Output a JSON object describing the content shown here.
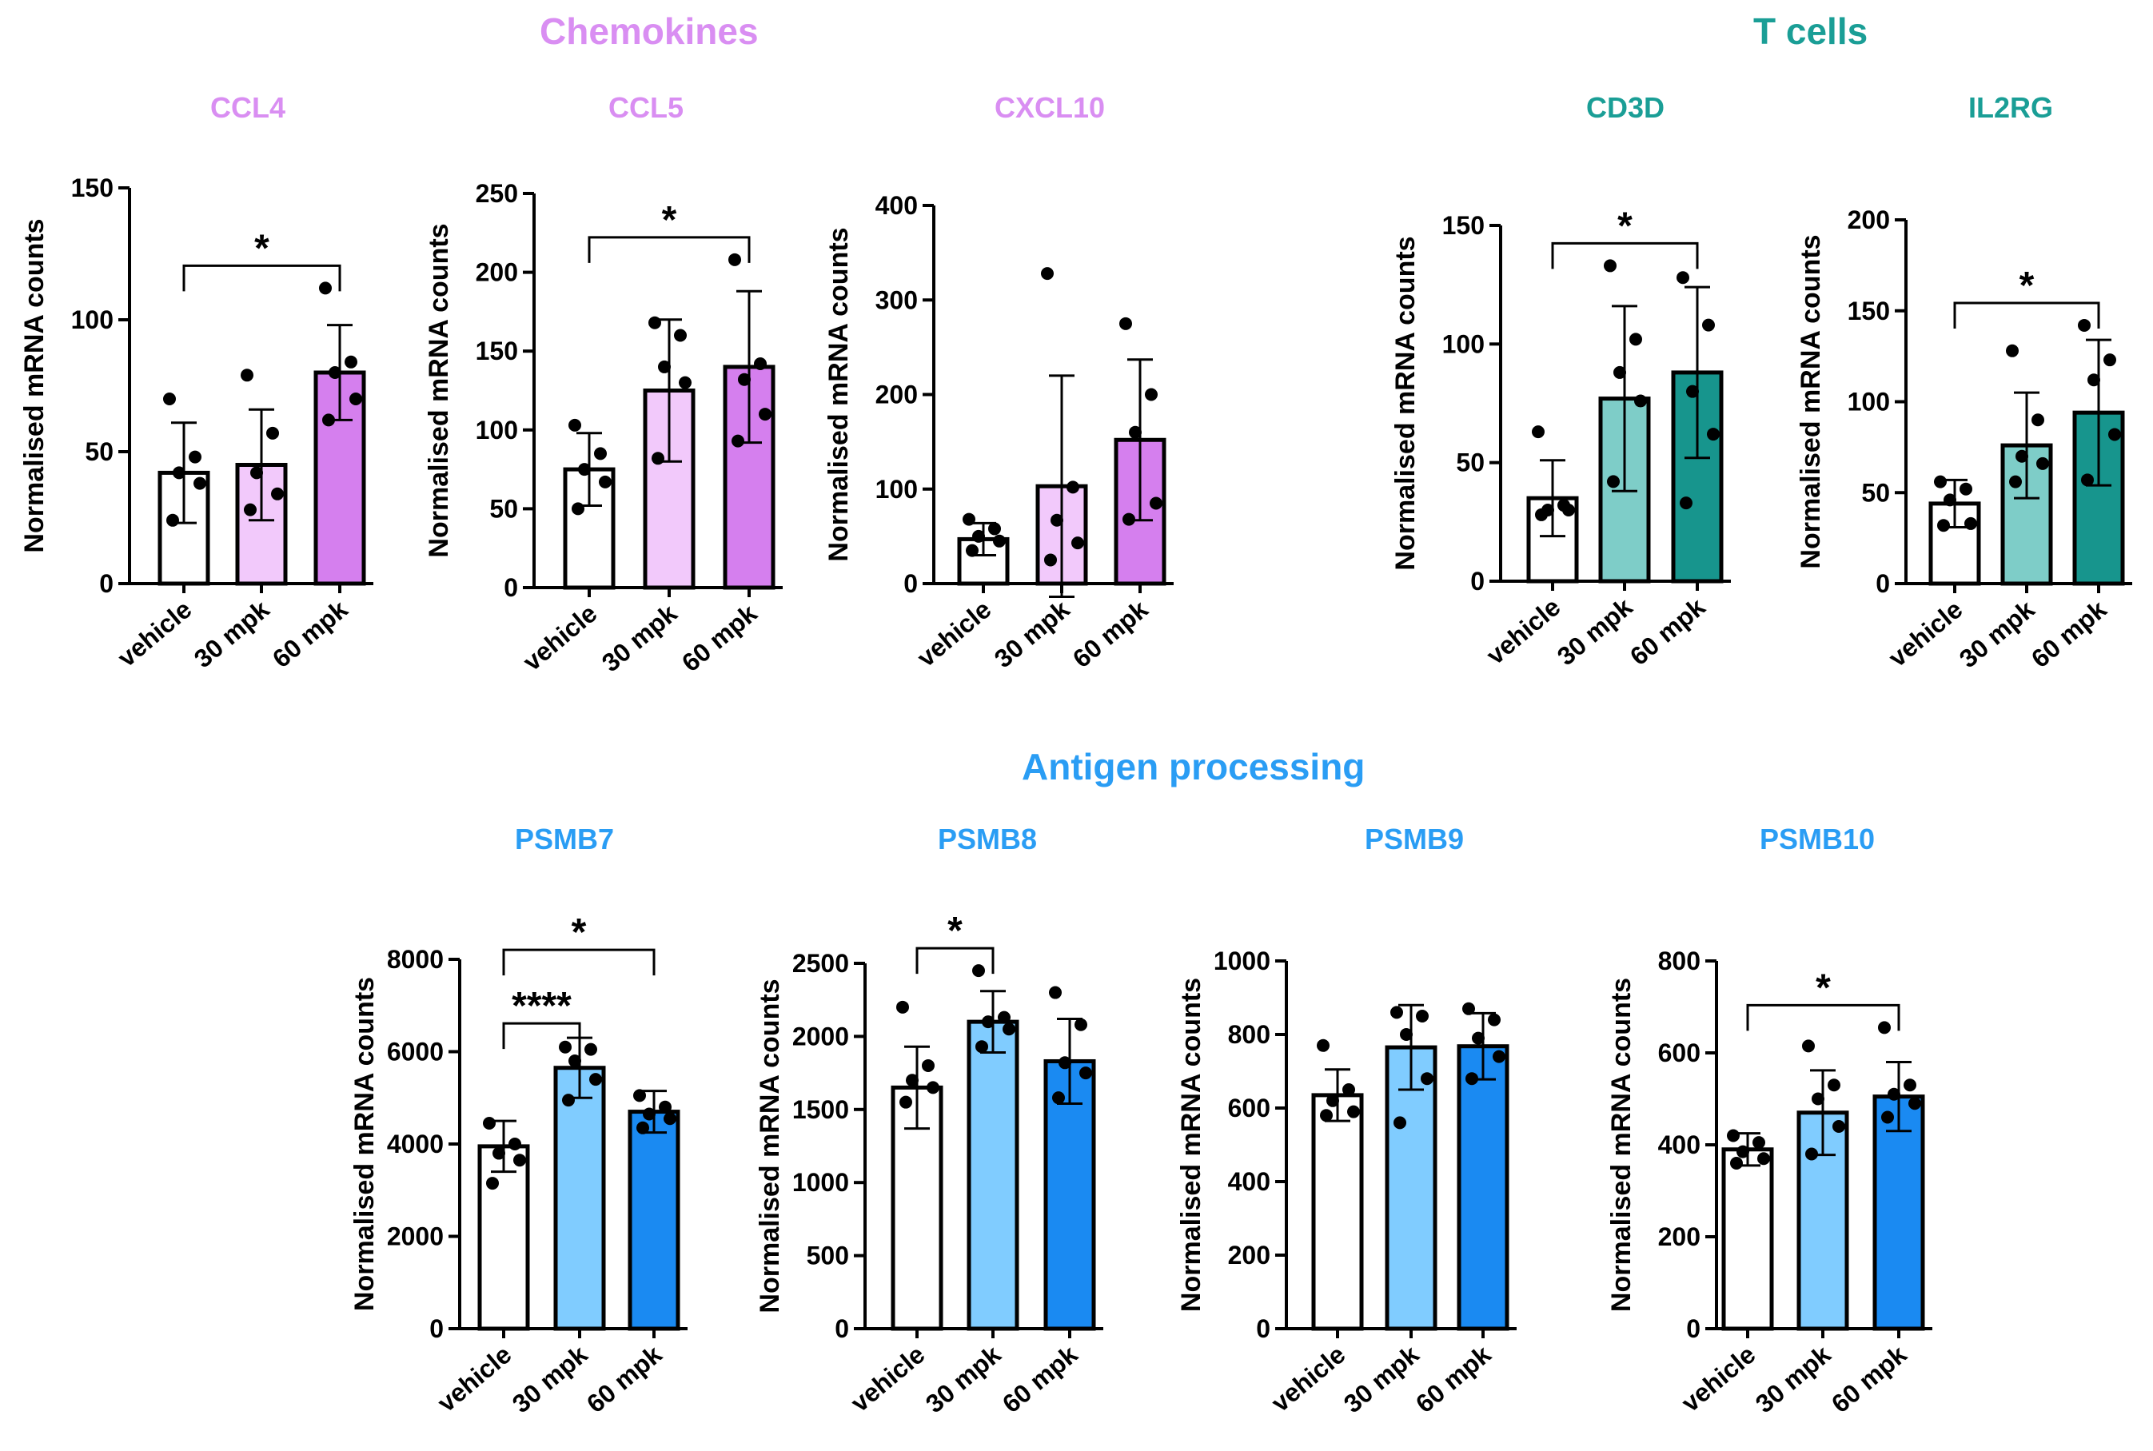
{
  "groups": {
    "chemokines": {
      "title": "Chemokines",
      "color": "#d98ef2"
    },
    "tcells": {
      "title": "T cells",
      "color": "#1a9e96"
    },
    "antigen": {
      "title": "Antigen processing",
      "color": "#2a9df4"
    }
  },
  "ylabel": "Normalised mRNA counts",
  "categories": [
    "vehicle",
    "30 mpk",
    "60 mpk"
  ],
  "chart_data": [
    {
      "type": "bar",
      "group": "chemokines",
      "title": "CCL4",
      "ylim": [
        0,
        150
      ],
      "ticks": [
        0,
        50,
        100,
        150
      ],
      "colors": [
        "#ffffff",
        "#f2c9fb",
        "#d57fee"
      ],
      "means": [
        42,
        45,
        80
      ],
      "sd": [
        19,
        21,
        18
      ],
      "points": [
        [
          70,
          48,
          42,
          38,
          24
        ],
        [
          79,
          57,
          42,
          34,
          28
        ],
        [
          112,
          84,
          80,
          70,
          62
        ]
      ],
      "sig": [
        {
          "from": 0,
          "to": 2,
          "label": "*"
        }
      ]
    },
    {
      "type": "bar",
      "group": "chemokines",
      "title": "CCL5",
      "ylim": [
        0,
        250
      ],
      "ticks": [
        0,
        50,
        100,
        150,
        200,
        250
      ],
      "colors": [
        "#ffffff",
        "#f2c9fb",
        "#d57fee"
      ],
      "means": [
        75,
        125,
        140
      ],
      "sd": [
        23,
        45,
        48
      ],
      "points": [
        [
          103,
          85,
          75,
          67,
          50
        ],
        [
          168,
          160,
          140,
          130,
          82
        ],
        [
          208,
          142,
          132,
          110,
          93
        ]
      ],
      "sig": [
        {
          "from": 0,
          "to": 2,
          "label": "*"
        }
      ]
    },
    {
      "type": "bar",
      "group": "chemokines",
      "title": "CXCL10",
      "ylim": [
        0,
        400
      ],
      "ticks": [
        0,
        100,
        200,
        300,
        400
      ],
      "colors": [
        "#ffffff",
        "#f2c9fb",
        "#d57fee"
      ],
      "means": [
        47,
        103,
        152
      ],
      "sd": [
        17,
        117,
        85
      ],
      "points": [
        [
          68,
          58,
          50,
          45,
          35
        ],
        [
          328,
          102,
          67,
          43,
          25
        ],
        [
          275,
          200,
          160,
          85,
          68
        ]
      ],
      "sig": []
    },
    {
      "type": "bar",
      "group": "tcells",
      "title": "CD3D",
      "ylim": [
        0,
        150
      ],
      "ticks": [
        0,
        50,
        100,
        150
      ],
      "colors": [
        "#ffffff",
        "#7ecdc8",
        "#17958d"
      ],
      "means": [
        35,
        77,
        88
      ],
      "sd": [
        16,
        39,
        36
      ],
      "points": [
        [
          63,
          32,
          30,
          30,
          28
        ],
        [
          133,
          102,
          88,
          76,
          42
        ],
        [
          128,
          108,
          80,
          62,
          33
        ]
      ],
      "sig": [
        {
          "from": 0,
          "to": 2,
          "label": "*"
        }
      ]
    },
    {
      "type": "bar",
      "group": "tcells",
      "title": "IL2RG",
      "ylim": [
        0,
        200
      ],
      "ticks": [
        0,
        50,
        100,
        150,
        200
      ],
      "colors": [
        "#ffffff",
        "#7ecdc8",
        "#17958d"
      ],
      "means": [
        44,
        76,
        94
      ],
      "sd": [
        13,
        29,
        40
      ],
      "points": [
        [
          56,
          52,
          46,
          33,
          32
        ],
        [
          128,
          90,
          70,
          66,
          56
        ],
        [
          142,
          123,
          112,
          82,
          57
        ]
      ],
      "sig": [
        {
          "from": 0,
          "to": 2,
          "label": "*"
        }
      ]
    },
    {
      "type": "bar",
      "group": "antigen",
      "title": "PSMB7",
      "ylim": [
        0,
        8000
      ],
      "ticks": [
        0,
        2000,
        4000,
        6000,
        8000
      ],
      "colors": [
        "#ffffff",
        "#80ccff",
        "#1a8af2"
      ],
      "means": [
        3950,
        5650,
        4700
      ],
      "sd": [
        550,
        650,
        450
      ],
      "points": [
        [
          4450,
          4000,
          3800,
          3650,
          3150
        ],
        [
          6100,
          6050,
          5800,
          5400,
          4950
        ],
        [
          5050,
          4800,
          4650,
          4550,
          4350
        ]
      ],
      "sig": [
        {
          "from": 0,
          "to": 1,
          "label": "****"
        },
        {
          "from": 0,
          "to": 2,
          "label": "*"
        }
      ]
    },
    {
      "type": "bar",
      "group": "antigen",
      "title": "PSMB8",
      "ylim": [
        0,
        2500
      ],
      "ticks": [
        0,
        500,
        1000,
        1500,
        2000,
        2500
      ],
      "colors": [
        "#ffffff",
        "#80ccff",
        "#1a8af2"
      ],
      "means": [
        1650,
        2100,
        1830
      ],
      "sd": [
        280,
        210,
        290
      ],
      "points": [
        [
          2200,
          1800,
          1700,
          1650,
          1550
        ],
        [
          2450,
          2130,
          2100,
          2050,
          1930
        ],
        [
          2300,
          2080,
          1820,
          1750,
          1580
        ]
      ],
      "sig": [
        {
          "from": 0,
          "to": 1,
          "label": "*"
        }
      ]
    },
    {
      "type": "bar",
      "group": "antigen",
      "title": "PSMB9",
      "ylim": [
        0,
        1000
      ],
      "ticks": [
        0,
        200,
        400,
        600,
        800,
        1000
      ],
      "colors": [
        "#ffffff",
        "#80ccff",
        "#1a8af2"
      ],
      "means": [
        635,
        765,
        768
      ],
      "sd": [
        70,
        115,
        90
      ],
      "points": [
        [
          770,
          650,
          620,
          590,
          580
        ],
        [
          860,
          850,
          800,
          680,
          560
        ],
        [
          870,
          840,
          790,
          740,
          680
        ]
      ],
      "sig": []
    },
    {
      "type": "bar",
      "group": "antigen",
      "title": "PSMB10",
      "ylim": [
        0,
        800
      ],
      "ticks": [
        0,
        200,
        400,
        600,
        800
      ],
      "colors": [
        "#ffffff",
        "#80ccff",
        "#1a8af2"
      ],
      "means": [
        390,
        470,
        505
      ],
      "sd": [
        35,
        92,
        75
      ],
      "points": [
        [
          420,
          405,
          385,
          370,
          360
        ],
        [
          615,
          530,
          500,
          440,
          380
        ],
        [
          655,
          530,
          510,
          490,
          460
        ]
      ],
      "sig": [
        {
          "from": 0,
          "to": 2,
          "label": "*"
        }
      ]
    }
  ]
}
